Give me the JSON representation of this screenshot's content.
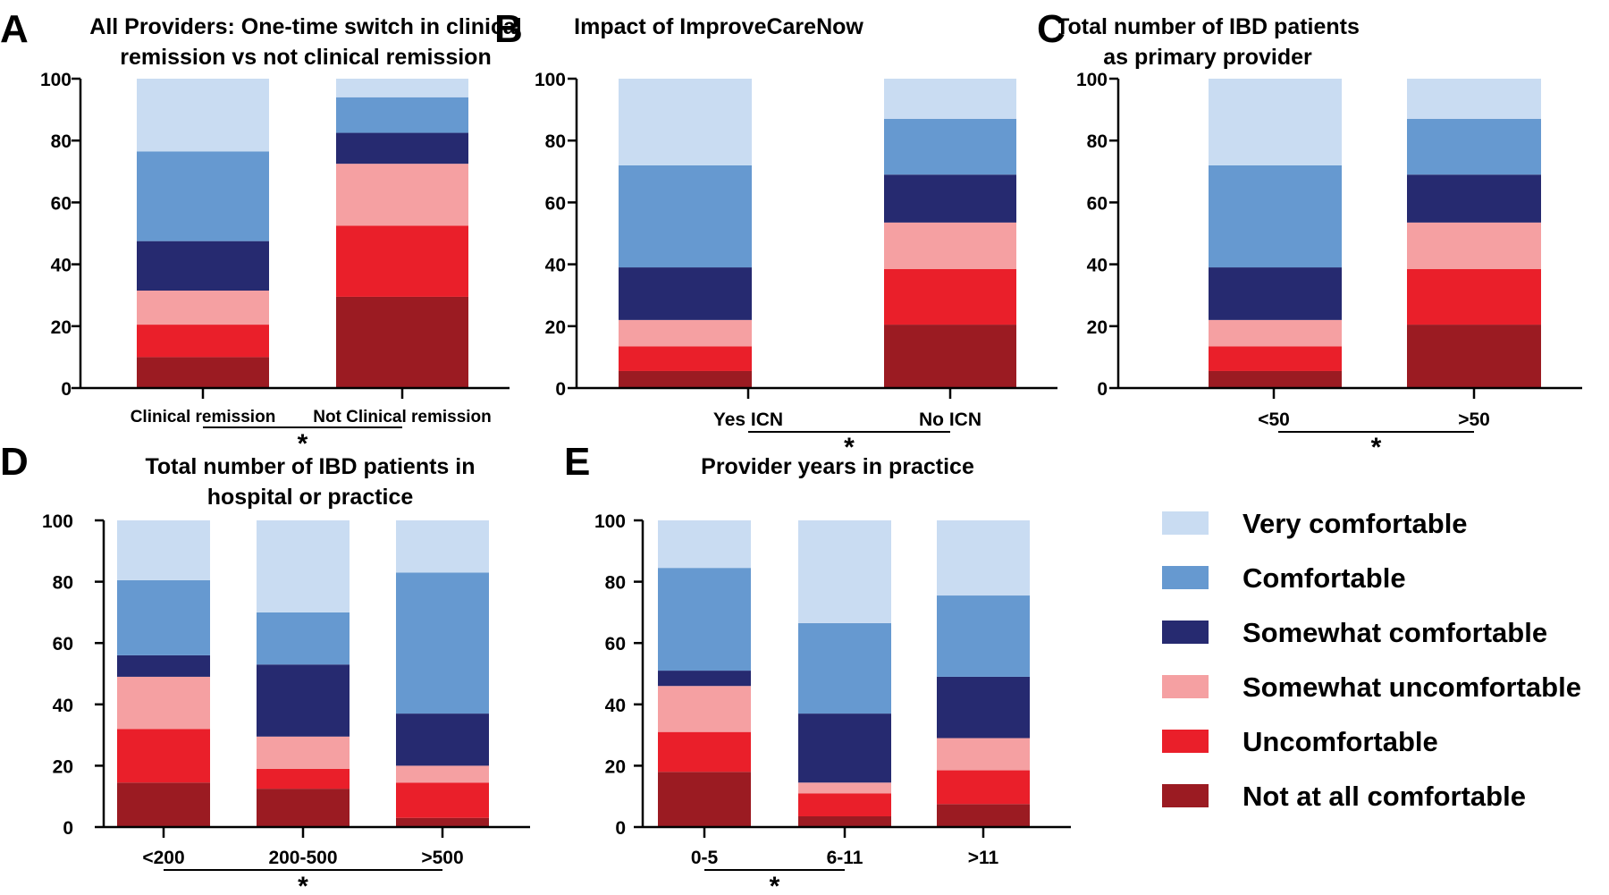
{
  "legend": [
    {
      "label": "Very comfortable",
      "color": "#c9dcf2"
    },
    {
      "label": "Comfortable",
      "color": "#6699d0"
    },
    {
      "label": "Somewhat comfortable",
      "color": "#262a70"
    },
    {
      "label": "Somewhat uncomfortable",
      "color": "#f5a0a2"
    },
    {
      "label": "Uncomfortable",
      "color": "#ea1f2a"
    },
    {
      "label": "Not at all comfortable",
      "color": "#9b1b22"
    }
  ],
  "stack_order": [
    "Not at all comfortable",
    "Uncomfortable",
    "Somewhat uncomfortable",
    "Somewhat comfortable",
    "Comfortable",
    "Very comfortable"
  ],
  "significance_marker": "*",
  "chart_data": [
    {
      "type": "bar",
      "stacked": true,
      "panel": "A",
      "title": [
        "All Providers: One-time switch in clinical",
        "remission vs not clinical remission"
      ],
      "categories": [
        "Clinical remission",
        "Not Clinical remission"
      ],
      "ylim": [
        0,
        100
      ],
      "yticks": [
        "0",
        "20",
        "40",
        "60",
        "80",
        "100"
      ],
      "series": [
        {
          "name": "Not at all comfortable",
          "values": [
            10,
            29.5
          ]
        },
        {
          "name": "Uncomfortable",
          "values": [
            10.5,
            23
          ]
        },
        {
          "name": "Somewhat uncomfortable",
          "values": [
            11,
            20
          ]
        },
        {
          "name": "Somewhat comfortable",
          "values": [
            16,
            10
          ]
        },
        {
          "name": "Comfortable",
          "values": [
            29,
            11.5
          ]
        },
        {
          "name": "Very comfortable",
          "values": [
            23.5,
            6
          ]
        }
      ]
    },
    {
      "type": "bar",
      "stacked": true,
      "panel": "B",
      "title": [
        "Impact of ImproveCareNow"
      ],
      "categories": [
        "Yes ICN",
        "No ICN"
      ],
      "ylim": [
        0,
        100
      ],
      "yticks": [
        "0",
        "20",
        "40",
        "60",
        "80",
        "100"
      ],
      "series": [
        {
          "name": "Not at all comfortable",
          "values": [
            5.5,
            20.5
          ]
        },
        {
          "name": "Uncomfortable",
          "values": [
            8,
            18
          ]
        },
        {
          "name": "Somewhat uncomfortable",
          "values": [
            8.5,
            15
          ]
        },
        {
          "name": "Somewhat comfortable",
          "values": [
            17,
            15.5
          ]
        },
        {
          "name": "Comfortable",
          "values": [
            33,
            18
          ]
        },
        {
          "name": "Very comfortable",
          "values": [
            28,
            13
          ]
        }
      ]
    },
    {
      "type": "bar",
      "stacked": true,
      "panel": "C",
      "title": [
        "Total number of IBD patients",
        "as primary provider"
      ],
      "categories": [
        "<50",
        ">50"
      ],
      "ylim": [
        0,
        100
      ],
      "yticks": [
        "0",
        "20",
        "40",
        "60",
        "80",
        "100"
      ],
      "series": [
        {
          "name": "Not at all comfortable",
          "values": [
            5.5,
            20.5
          ]
        },
        {
          "name": "Uncomfortable",
          "values": [
            8,
            18
          ]
        },
        {
          "name": "Somewhat uncomfortable",
          "values": [
            8.5,
            15
          ]
        },
        {
          "name": "Somewhat comfortable",
          "values": [
            17,
            15.5
          ]
        },
        {
          "name": "Comfortable",
          "values": [
            33,
            18
          ]
        },
        {
          "name": "Very comfortable",
          "values": [
            28,
            13
          ]
        }
      ]
    },
    {
      "type": "bar",
      "stacked": true,
      "panel": "D",
      "title": [
        "Total number of IBD patients in",
        "hospital or practice"
      ],
      "categories": [
        "<200",
        "200-500",
        ">500"
      ],
      "ylim": [
        0,
        100
      ],
      "yticks": [
        "0",
        "20",
        "40",
        "60",
        "80",
        "100"
      ],
      "series": [
        {
          "name": "Not at all comfortable",
          "values": [
            14.5,
            12.5,
            3
          ]
        },
        {
          "name": "Uncomfortable",
          "values": [
            17.5,
            6.5,
            11.5
          ]
        },
        {
          "name": "Somewhat uncomfortable",
          "values": [
            17,
            10.5,
            5.5
          ]
        },
        {
          "name": "Somewhat comfortable",
          "values": [
            7,
            23.5,
            17
          ]
        },
        {
          "name": "Comfortable",
          "values": [
            24.5,
            17,
            46
          ]
        },
        {
          "name": "Very comfortable",
          "values": [
            19.5,
            30,
            17
          ]
        }
      ]
    },
    {
      "type": "bar",
      "stacked": true,
      "panel": "E",
      "title": [
        "Provider years in practice"
      ],
      "categories": [
        "0-5",
        "6-11",
        ">11"
      ],
      "ylim": [
        0,
        100
      ],
      "yticks": [
        "0",
        "20",
        "40",
        "60",
        "80",
        "100"
      ],
      "series": [
        {
          "name": "Not at all comfortable",
          "values": [
            18,
            3.5,
            7.5
          ]
        },
        {
          "name": "Uncomfortable",
          "values": [
            13,
            7.5,
            11
          ]
        },
        {
          "name": "Somewhat uncomfortable",
          "values": [
            15,
            3.5,
            10.5
          ]
        },
        {
          "name": "Somewhat comfortable",
          "values": [
            5,
            22.5,
            20
          ]
        },
        {
          "name": "Comfortable",
          "values": [
            33.5,
            29.5,
            26.5
          ]
        },
        {
          "name": "Very comfortable",
          "values": [
            15.5,
            33.5,
            24.5
          ]
        }
      ]
    }
  ]
}
